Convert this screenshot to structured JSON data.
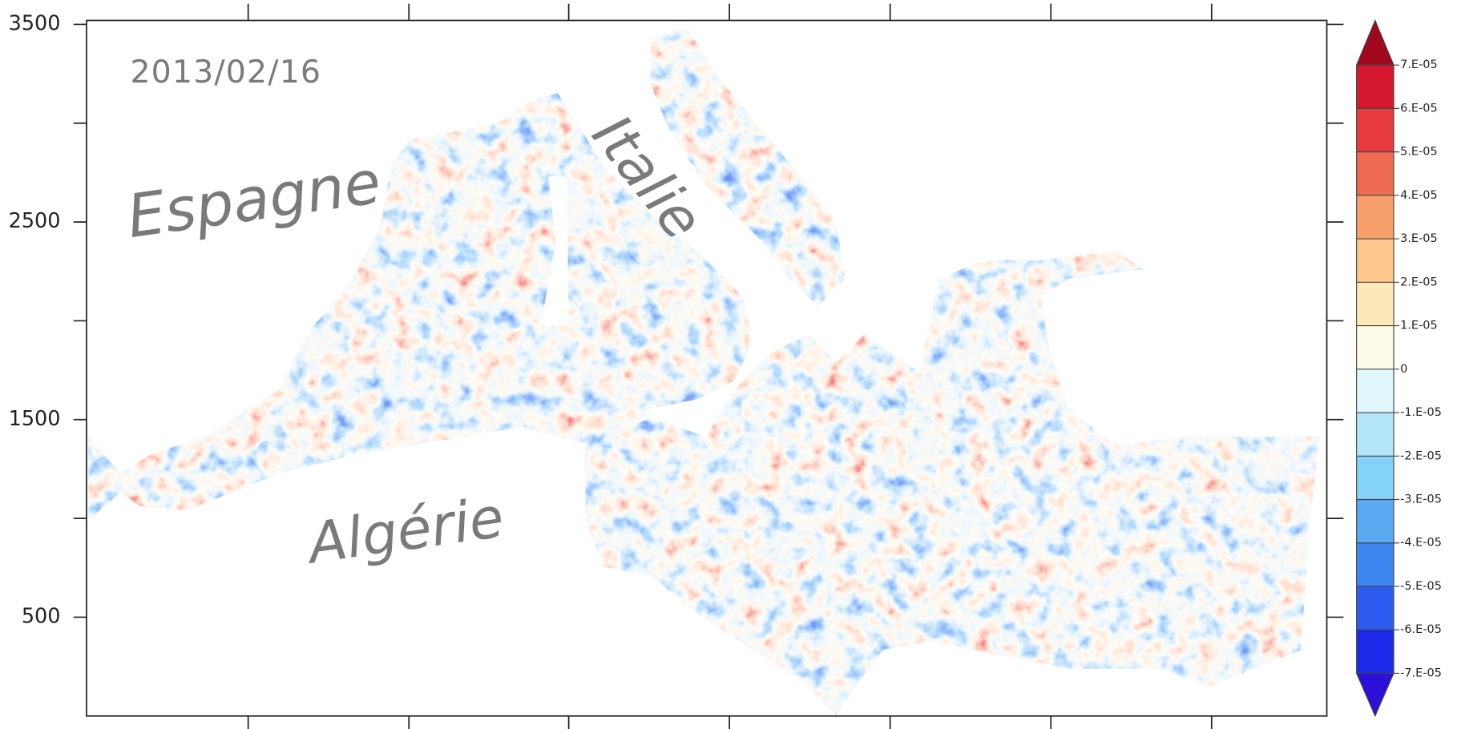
{
  "chart_data": {
    "type": "map",
    "annotations": [
      "2013/02/16",
      "Espagne",
      "Italie",
      "Algérie"
    ],
    "ylim": [
      0,
      3520
    ],
    "yticks": [
      500,
      1500,
      2500,
      3500
    ],
    "yminorticks": [
      1000,
      2000,
      3000
    ],
    "colorbar": {
      "ticks": [
        {
          "value": -7e-05,
          "label": "-7.E-05"
        },
        {
          "value": -6e-05,
          "label": "-6.E-05"
        },
        {
          "value": -5e-05,
          "label": "-5.E-05"
        },
        {
          "value": -4e-05,
          "label": "-4.E-05"
        },
        {
          "value": -3e-05,
          "label": "-3.E-05"
        },
        {
          "value": -2e-05,
          "label": "-2.E-05"
        },
        {
          "value": -1e-05,
          "label": "-1.E-05"
        },
        0,
        {
          "value": 1e-05,
          "label": "1.E-05"
        },
        {
          "value": 2e-05,
          "label": "2.E-05"
        },
        {
          "value": 3e-05,
          "label": "3.E-05"
        },
        {
          "value": 4e-05,
          "label": "4.E-05"
        },
        {
          "value": 5e-05,
          "label": "5.E-05"
        },
        {
          "value": 6e-05,
          "label": "6.E-05"
        },
        {
          "value": 7e-05,
          "label": "7.E-05"
        }
      ],
      "colors": [
        "#2d10d8",
        "#1a2ae8",
        "#2f5cf0",
        "#3d85f0",
        "#5aaaf2",
        "#85d2f8",
        "#b4e6f7",
        "#dff6fb",
        "#fffbe9",
        "#fde8b8",
        "#fbc78a",
        "#f79f6b",
        "#ef6a52",
        "#e53b3e",
        "#d51830",
        "#a0081e"
      ]
    }
  }
}
